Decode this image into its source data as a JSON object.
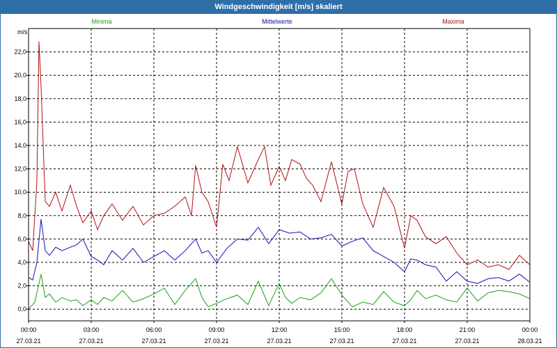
{
  "window": {
    "title": "Windgeschwindigkeit [m/s] skaliert"
  },
  "colors": {
    "minima": "#19a019",
    "mittelwerte": "#1010b0",
    "maxima": "#b01010",
    "titlebar": "#2f6fa8"
  },
  "chart_data": {
    "type": "line",
    "title": "Windgeschwindigkeit [m/s] skaliert",
    "ylabel": "m/s",
    "ylim": [
      -1.0,
      24.0
    ],
    "yticks": [
      0,
      2,
      4,
      6,
      8,
      10,
      12,
      14,
      16,
      18,
      20,
      22
    ],
    "ytick_labels": [
      "0,0",
      "2,0",
      "4,0",
      "6,0",
      "8,0",
      "10,0",
      "12,0",
      "14,0",
      "16,0",
      "18,0",
      "20,0",
      "22,0"
    ],
    "xlim": [
      0,
      24
    ],
    "xticks": [
      0,
      3,
      6,
      9,
      12,
      15,
      18,
      21,
      24
    ],
    "xtick_time_labels": [
      "00:00",
      "03:00",
      "06:00",
      "09:00",
      "12:00",
      "15:00",
      "18:00",
      "21:00",
      "00:00"
    ],
    "xtick_date_labels": [
      "27.03.21",
      "27.03.21",
      "27.03.21",
      "27.03.21",
      "27.03.21",
      "27.03.21",
      "27.03.21",
      "27.03.21",
      "28.03.21"
    ],
    "grid": true,
    "legend_position": "top",
    "series": [
      {
        "name": "Minima",
        "x": [
          0,
          0.3,
          0.6,
          0.8,
          1.0,
          1.3,
          1.6,
          2.0,
          2.3,
          2.6,
          3.0,
          3.3,
          3.6,
          4.0,
          4.5,
          5.0,
          5.5,
          6.0,
          6.5,
          7.0,
          7.5,
          8.0,
          8.3,
          8.6,
          9.0,
          9.5,
          10.0,
          10.5,
          11.0,
          11.5,
          12.0,
          12.3,
          12.6,
          13.0,
          13.5,
          14.0,
          14.5,
          15.0,
          15.5,
          16.0,
          16.5,
          17.0,
          17.5,
          18.0,
          18.3,
          18.6,
          19.0,
          19.5,
          20.0,
          20.5,
          21.0,
          21.5,
          22.0,
          22.5,
          23.0,
          23.5,
          24.0
        ],
        "values": [
          0.0,
          0.6,
          3.0,
          1.0,
          1.3,
          0.6,
          1.0,
          0.7,
          0.8,
          0.3,
          0.8,
          0.4,
          1.0,
          0.7,
          1.6,
          0.6,
          0.9,
          1.3,
          1.8,
          0.4,
          1.6,
          2.6,
          1.0,
          0.2,
          0.5,
          0.9,
          1.2,
          0.4,
          2.4,
          0.3,
          2.2,
          1.0,
          0.5,
          1.0,
          0.8,
          1.4,
          2.6,
          1.2,
          0.2,
          0.6,
          0.4,
          1.5,
          0.6,
          0.3,
          0.8,
          1.6,
          0.9,
          1.2,
          0.8,
          0.6,
          1.8,
          0.7,
          1.4,
          1.6,
          1.5,
          1.3,
          0.9
        ]
      },
      {
        "name": "Mittelwerte",
        "x": [
          0,
          0.2,
          0.4,
          0.6,
          0.8,
          1.0,
          1.3,
          1.6,
          2.0,
          2.3,
          2.6,
          3.0,
          3.3,
          3.6,
          4.0,
          4.5,
          5.0,
          5.5,
          6.0,
          6.5,
          7.0,
          7.5,
          8.0,
          8.3,
          8.6,
          9.0,
          9.5,
          10.0,
          10.5,
          11.0,
          11.5,
          12.0,
          12.5,
          13.0,
          13.5,
          14.0,
          14.5,
          15.0,
          15.5,
          16.0,
          16.5,
          17.0,
          17.5,
          18.0,
          18.3,
          18.6,
          19.0,
          19.5,
          20.0,
          20.5,
          21.0,
          21.5,
          22.0,
          22.5,
          23.0,
          23.5,
          24.0
        ],
        "values": [
          2.7,
          2.5,
          4.0,
          7.7,
          5.0,
          4.6,
          5.3,
          5.0,
          5.3,
          5.5,
          6.0,
          4.5,
          4.2,
          3.8,
          5.0,
          4.2,
          5.2,
          4.0,
          4.5,
          5.0,
          4.2,
          5.0,
          6.0,
          4.8,
          5.0,
          4.0,
          5.2,
          6.0,
          5.9,
          7.0,
          5.6,
          6.8,
          6.5,
          6.6,
          6.0,
          6.1,
          6.4,
          5.4,
          5.8,
          6.1,
          5.0,
          4.5,
          4.0,
          3.2,
          4.3,
          4.2,
          3.8,
          3.6,
          2.4,
          3.2,
          2.4,
          2.2,
          2.6,
          2.7,
          2.4,
          3.0,
          2.3
        ]
      },
      {
        "name": "Maxima",
        "x": [
          0,
          0.2,
          0.4,
          0.5,
          0.6,
          0.8,
          1.0,
          1.3,
          1.6,
          2.0,
          2.3,
          2.6,
          3.0,
          3.3,
          3.6,
          4.0,
          4.5,
          5.0,
          5.5,
          6.0,
          6.5,
          7.0,
          7.5,
          7.8,
          8.0,
          8.3,
          8.6,
          9.0,
          9.3,
          9.6,
          10.0,
          10.5,
          11.0,
          11.3,
          11.6,
          12.0,
          12.3,
          12.6,
          13.0,
          13.3,
          13.6,
          14.0,
          14.5,
          15.0,
          15.3,
          15.6,
          16.0,
          16.5,
          17.0,
          17.5,
          18.0,
          18.3,
          18.6,
          19.0,
          19.5,
          20.0,
          20.5,
          21.0,
          21.5,
          22.0,
          22.5,
          23.0,
          23.5,
          24.0
        ],
        "values": [
          5.8,
          5.0,
          11.0,
          22.9,
          19.0,
          9.2,
          8.8,
          10.0,
          8.4,
          10.6,
          8.8,
          7.4,
          8.4,
          6.8,
          8.0,
          9.0,
          7.6,
          8.8,
          7.2,
          8.0,
          8.2,
          8.8,
          9.6,
          8.0,
          12.3,
          10.0,
          9.2,
          7.0,
          12.4,
          11.0,
          13.9,
          10.8,
          12.8,
          13.9,
          10.6,
          12.2,
          11.0,
          12.8,
          12.4,
          11.2,
          10.6,
          9.2,
          12.6,
          9.0,
          11.8,
          12.0,
          9.0,
          7.0,
          10.4,
          8.8,
          5.2,
          8.0,
          7.6,
          6.2,
          5.6,
          6.2,
          4.8,
          3.8,
          4.2,
          3.6,
          3.8,
          3.4,
          4.6,
          3.8
        ]
      }
    ]
  }
}
